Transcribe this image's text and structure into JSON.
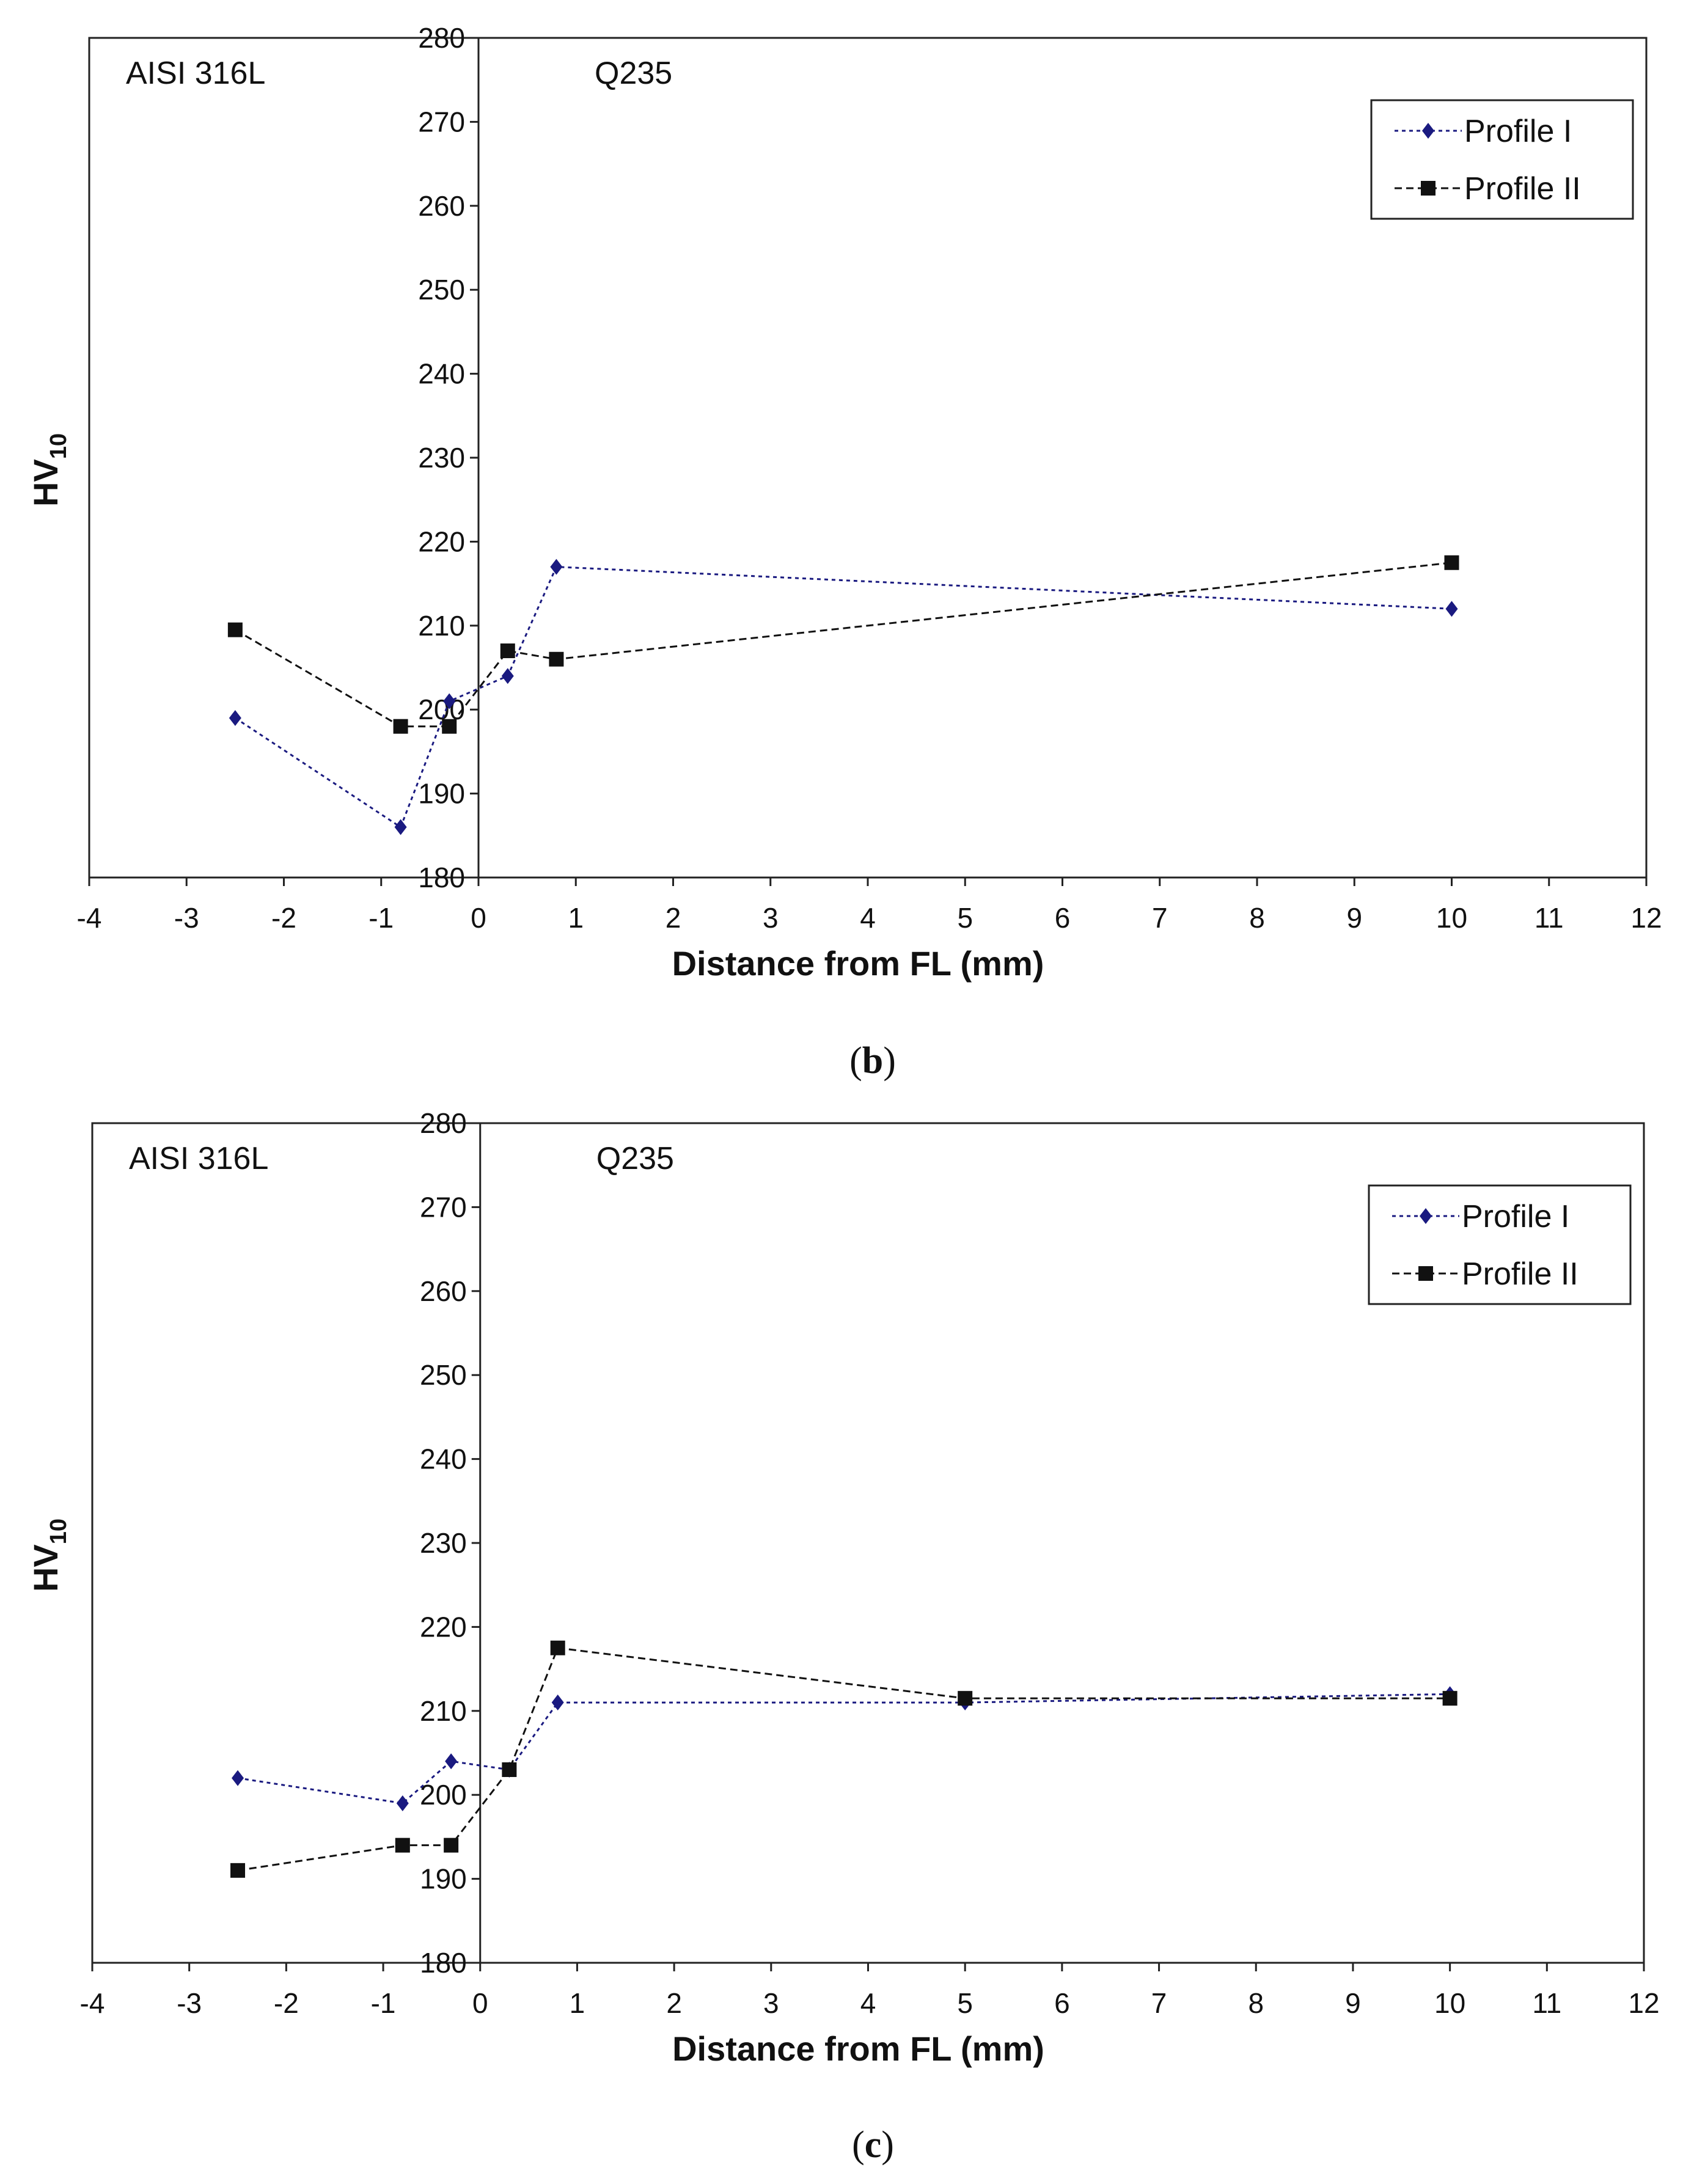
{
  "chart_data": [
    {
      "type": "line",
      "panel_label": "b",
      "xlabel": "Distance from FL (mm)",
      "ylabel": "HV",
      "ylabel_sub": "10",
      "xlim": [
        -4,
        12
      ],
      "ylim": [
        180,
        280
      ],
      "x_ticks": [
        -4,
        -3,
        -2,
        -1,
        0,
        1,
        2,
        3,
        4,
        5,
        6,
        7,
        8,
        9,
        10,
        11,
        12
      ],
      "y_ticks": [
        180,
        190,
        200,
        210,
        220,
        230,
        240,
        250,
        260,
        270,
        280
      ],
      "grid": false,
      "legend_position": "top-right",
      "regions": [
        {
          "label": "AISI 316L",
          "side": "left"
        },
        {
          "label": "Q235",
          "side": "right"
        }
      ],
      "series": [
        {
          "name": "Profile I",
          "color": "#1a1a80",
          "marker": "diamond",
          "line": "dotted",
          "points": [
            [
              -2.5,
              199
            ],
            [
              -0.8,
              186
            ],
            [
              -0.3,
              201
            ],
            [
              0.3,
              204
            ],
            [
              0.8,
              217
            ],
            [
              10,
              212
            ]
          ]
        },
        {
          "name": "Profile II",
          "color": "#111111",
          "marker": "square",
          "line": "dashed",
          "points": [
            [
              -2.5,
              209.5
            ],
            [
              -0.8,
              198
            ],
            [
              -0.3,
              198
            ],
            [
              0.3,
              207
            ],
            [
              0.8,
              206
            ],
            [
              10,
              217.5
            ]
          ]
        }
      ]
    },
    {
      "type": "line",
      "panel_label": "c",
      "xlabel": "Distance from FL (mm)",
      "ylabel": "HV",
      "ylabel_sub": "10",
      "xlim": [
        -4,
        12
      ],
      "ylim": [
        180,
        280
      ],
      "x_ticks": [
        -4,
        -3,
        -2,
        -1,
        0,
        1,
        2,
        3,
        4,
        5,
        6,
        7,
        8,
        9,
        10,
        11,
        12
      ],
      "y_ticks": [
        180,
        190,
        200,
        210,
        220,
        230,
        240,
        250,
        260,
        270,
        280
      ],
      "grid": false,
      "legend_position": "top-right",
      "regions": [
        {
          "label": "AISI 316L",
          "side": "left"
        },
        {
          "label": "Q235",
          "side": "right"
        }
      ],
      "series": [
        {
          "name": "Profile I",
          "color": "#1a1a80",
          "marker": "diamond",
          "line": "dotted",
          "points": [
            [
              -2.5,
              202
            ],
            [
              -0.8,
              199
            ],
            [
              -0.3,
              204
            ],
            [
              0.3,
              203
            ],
            [
              0.8,
              211
            ],
            [
              5,
              211
            ],
            [
              10,
              212
            ]
          ]
        },
        {
          "name": "Profile II",
          "color": "#111111",
          "marker": "square",
          "line": "dashed",
          "points": [
            [
              -2.5,
              191
            ],
            [
              -0.8,
              194
            ],
            [
              -0.3,
              194
            ],
            [
              0.3,
              203
            ],
            [
              0.8,
              217.5
            ],
            [
              5,
              211.5
            ],
            [
              10,
              211.5
            ]
          ]
        }
      ]
    }
  ]
}
